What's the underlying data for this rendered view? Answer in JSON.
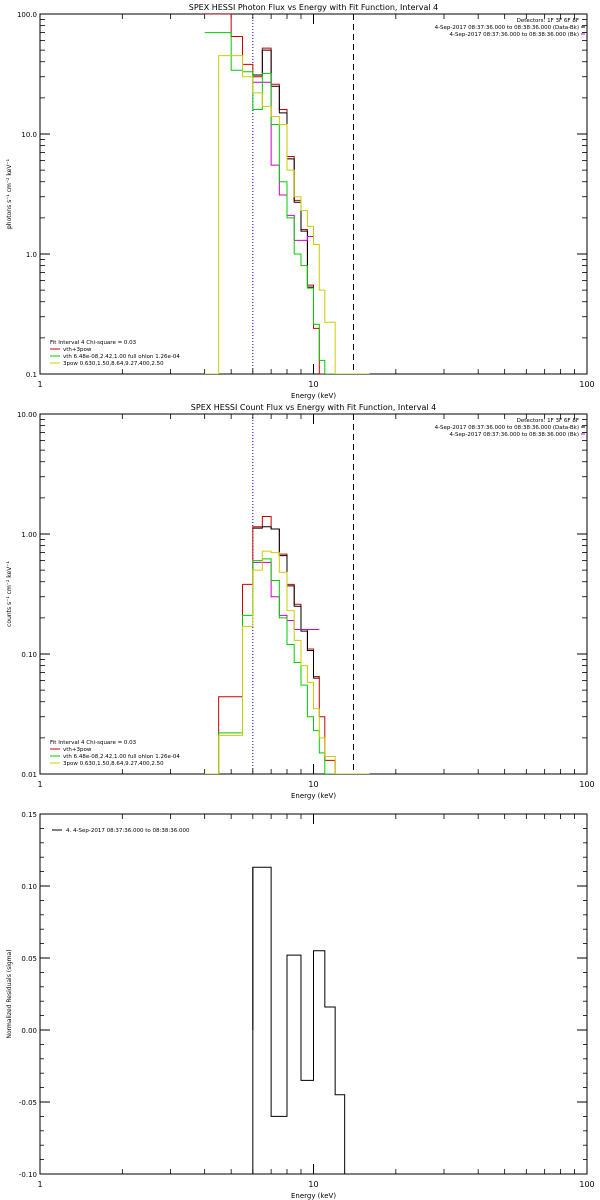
{
  "chart_data": [
    {
      "type": "line",
      "step": true,
      "title": "SPEX HESSI Photon Flux vs Energy with Fit Function, Interval 4",
      "xlabel": "Energy (keV)",
      "ylabel": "photons s⁻¹ cm⁻² keV⁻¹",
      "xscale": "log",
      "yscale": "log",
      "xlim": [
        1,
        100
      ],
      "ylim": [
        0.1,
        100
      ],
      "xticks": [
        {
          "v": 1,
          "label": "1"
        },
        {
          "v": 10,
          "label": "10"
        },
        {
          "v": 100,
          "label": "100"
        }
      ],
      "yticks": [
        {
          "v": 0.1,
          "label": "0.1"
        },
        {
          "v": 1,
          "label": "1.0"
        },
        {
          "v": 10,
          "label": "10.0"
        },
        {
          "v": 100,
          "label": "100.0"
        }
      ],
      "vlines": [
        {
          "x": 6.0,
          "style": "dotted",
          "color": "#0000cc"
        },
        {
          "x": 14.0,
          "style": "dashed",
          "color": "#000000"
        }
      ],
      "info_lines": [
        "Detectors: 1F 3F 6F 8F",
        "4-Sep-2017 08:37:36.000 to 08:38:36.000 (Data-Bk)",
        "4-Sep-2017 08:37:36.000 to 08:38:36.000 (Bk)"
      ],
      "info_colors": [
        "",
        "#000000",
        "#cc00cc"
      ],
      "fit_header": "Fit Interval 4   Chi-square = 0.03",
      "legend": [
        {
          "label": "vth+3pow",
          "color": "#cc0000"
        },
        {
          "label": "vth 6.48e-08,2.42,1.00  full ohlon 1.26e-04",
          "color": "#00cc00"
        },
        {
          "label": "3pow 0.630,1.50,8.64,9.27,400,2.50",
          "color": "#cccc00"
        }
      ],
      "edges": [
        4,
        4.5,
        5,
        5.5,
        6,
        6.5,
        7,
        7.5,
        8,
        8.5,
        9,
        9.5,
        10,
        10.5,
        11,
        12,
        13,
        14,
        15,
        16
      ],
      "series": [
        {
          "name": "vth+3pow",
          "color": "#cc0000",
          "values": [
            100,
            100,
            65,
            38,
            30,
            52,
            26,
            16,
            6.5,
            2.8,
            1.6,
            0.55,
            0.24,
            0.1,
            0.1,
            0.1,
            0.1,
            0.1,
            0.1
          ]
        },
        {
          "name": "Data-Bk",
          "color": "#000000",
          "values": [
            null,
            null,
            null,
            null,
            31,
            50,
            25,
            15,
            6.2,
            2.7,
            1.55,
            0.53,
            null,
            null,
            null,
            null,
            null,
            null,
            null
          ]
        },
        {
          "name": "Bk",
          "color": "#cc00cc",
          "values": [
            null,
            null,
            null,
            null,
            27,
            27,
            5.5,
            3.1,
            2.1,
            1.3,
            1.3,
            1.4,
            null,
            null,
            null,
            null,
            null,
            null,
            null
          ]
        },
        {
          "name": "vth",
          "color": "#00cc00",
          "values": [
            70,
            70,
            34,
            33,
            16,
            32,
            12,
            4,
            2,
            1,
            0.8,
            0.52,
            0.26,
            0.13,
            0.1,
            0.1,
            0.1,
            0.1,
            0.1
          ]
        },
        {
          "name": "3pow",
          "color": "#cccc00",
          "values": [
            0.1,
            45,
            45,
            30,
            22,
            17,
            14,
            12,
            5,
            3,
            2.3,
            1.7,
            1.2,
            0.5,
            0.27,
            0.1,
            0.1,
            0.1,
            0.1
          ]
        }
      ]
    },
    {
      "type": "line",
      "step": true,
      "title": "SPEX HESSI Count Flux vs Energy with Fit Function, Interval 4",
      "xlabel": "Energy (keV)",
      "ylabel": "counts s⁻¹ cm⁻² keV⁻¹",
      "xscale": "log",
      "yscale": "log",
      "xlim": [
        1,
        100
      ],
      "ylim": [
        0.01,
        10
      ],
      "xticks": [
        {
          "v": 1,
          "label": "1"
        },
        {
          "v": 10,
          "label": "10"
        },
        {
          "v": 100,
          "label": "100"
        }
      ],
      "yticks": [
        {
          "v": 0.01,
          "label": "0.01"
        },
        {
          "v": 0.1,
          "label": "0.10"
        },
        {
          "v": 1,
          "label": "1.00"
        },
        {
          "v": 10,
          "label": "10.00"
        }
      ],
      "vlines": [
        {
          "x": 6.0,
          "style": "dotted",
          "color": "#0000cc"
        },
        {
          "x": 14.0,
          "style": "dashed",
          "color": "#000000"
        }
      ],
      "info_lines": [
        "Detectors: 1F 3F 6F 8F",
        "4-Sep-2017 08:37:36.000 to 08:38:36.000 (Data-Bk)",
        "4-Sep-2017 08:37:36.000 to 08:38:36.000 (Bk)"
      ],
      "info_colors": [
        "",
        "#000000",
        "#cc00cc"
      ],
      "fit_header": "Fit Interval 4   Chi-square = 0.03",
      "legend": [
        {
          "label": "vth+3pow",
          "color": "#cc0000"
        },
        {
          "label": "vth 6.48e-08,2.42,1.00  full ohlon 1.26e-04",
          "color": "#00cc00"
        },
        {
          "label": "3pow 0.630,1.50,8.64,9.27,400,2.50",
          "color": "#cccc00"
        }
      ],
      "edges": [
        4,
        4.5,
        5,
        5.5,
        6,
        6.5,
        7,
        7.5,
        8,
        8.5,
        9,
        9.5,
        10,
        10.5,
        11,
        12,
        13,
        14,
        15,
        16
      ],
      "series": [
        {
          "name": "vth+3pow",
          "color": "#cc0000",
          "values": [
            0.01,
            0.044,
            0.044,
            0.38,
            1.15,
            1.4,
            1.1,
            0.68,
            0.38,
            0.26,
            0.16,
            0.11,
            0.065,
            0.03,
            0.013,
            0.01,
            0.01,
            0.01,
            0.01
          ]
        },
        {
          "name": "Data-Bk",
          "color": "#000000",
          "values": [
            null,
            null,
            null,
            null,
            1.12,
            1.15,
            1.1,
            0.66,
            0.37,
            0.25,
            0.155,
            0.107,
            0.063,
            null,
            null,
            null,
            null,
            null,
            null
          ]
        },
        {
          "name": "Bk",
          "color": "#cc00cc",
          "values": [
            null,
            null,
            null,
            null,
            0.58,
            0.58,
            0.3,
            0.21,
            0.19,
            0.16,
            0.16,
            0.16,
            0.16,
            null,
            null,
            null,
            null,
            null,
            null
          ]
        },
        {
          "name": "vth",
          "color": "#00cc00",
          "values": [
            0.01,
            0.022,
            0.022,
            0.21,
            0.6,
            0.62,
            0.41,
            0.2,
            0.12,
            0.085,
            0.055,
            0.03,
            0.023,
            0.015,
            0.01,
            0.01,
            0.01,
            0.01,
            0.01
          ]
        },
        {
          "name": "3pow",
          "color": "#cccc00",
          "values": [
            0.01,
            0.021,
            0.021,
            0.17,
            0.5,
            0.72,
            0.7,
            0.48,
            0.23,
            0.13,
            0.08,
            0.058,
            0.035,
            0.02,
            0.014,
            0.01,
            0.01,
            0.01,
            0.01
          ]
        }
      ]
    },
    {
      "type": "line",
      "step": true,
      "title": "",
      "xlabel": "Energy (keV)",
      "ylabel": "Normalized Residuals (sigma)",
      "xscale": "log",
      "yscale": "linear",
      "xlim": [
        1,
        100
      ],
      "ylim": [
        -0.1,
        0.15
      ],
      "xticks": [
        {
          "v": 1,
          "label": "1"
        },
        {
          "v": 10,
          "label": "10"
        },
        {
          "v": 100,
          "label": "100"
        }
      ],
      "yticks": [
        {
          "v": -0.1,
          "label": "-0.10"
        },
        {
          "v": -0.05,
          "label": "-0.05"
        },
        {
          "v": 0,
          "label": "0.00"
        },
        {
          "v": 0.05,
          "label": "0.05"
        },
        {
          "v": 0.1,
          "label": "0.10"
        },
        {
          "v": 0.15,
          "label": "0.15"
        }
      ],
      "legend": [
        {
          "label": "4.  4-Sep-2017 08:37:36.000 to 08:38:36.000",
          "color": "#000000"
        }
      ],
      "edges": [
        6,
        7,
        8,
        9,
        10,
        11,
        12,
        13
      ],
      "series": [
        {
          "name": "residuals",
          "color": "#000000",
          "values": [
            0.113,
            -0.06,
            0.052,
            -0.035,
            0.055,
            0.016,
            -0.045
          ]
        }
      ]
    }
  ]
}
